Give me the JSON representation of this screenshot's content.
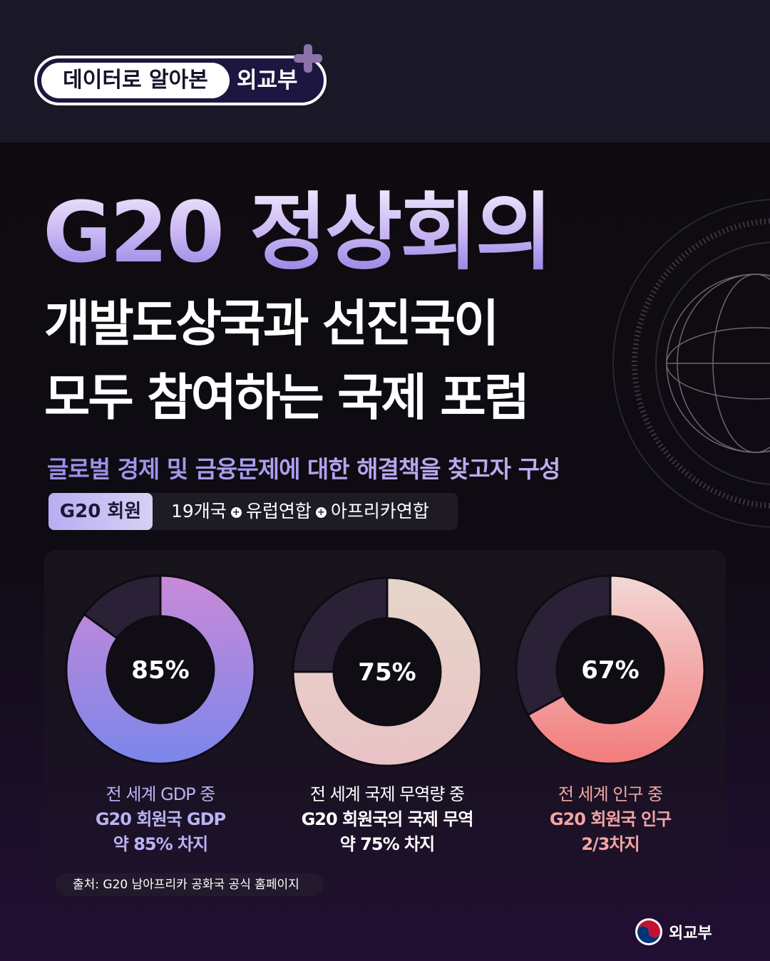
{
  "header": {
    "series_label": "데이터로 알아본",
    "org": "외교부"
  },
  "title": "G20 정상회의",
  "subtitle_lines": [
    "개발도상국과 선진국이",
    "모두 참여하는 국제 포럼"
  ],
  "tagline": "글로벌 경제 및 금융문제에 대한 해결책을 찾고자 구성",
  "members": {
    "label": "G20 회원",
    "items": [
      "19개국",
      "유럽연합",
      "아프리카연합"
    ],
    "separator": "+"
  },
  "chart_data": [
    {
      "type": "pie",
      "donut": true,
      "values": [
        85,
        15
      ],
      "label": "85%",
      "caption": [
        "전 세계 GDP 중",
        "G20  회원국 GDP",
        "약 85% 차지"
      ],
      "colors": [
        "#c98ad8",
        "#7b86ea"
      ],
      "caption_color": "#b9b3f2"
    },
    {
      "type": "pie",
      "donut": true,
      "values": [
        75,
        25
      ],
      "label": "75%",
      "caption": [
        "전 세계 국제 무역량 중",
        "G20 회원국의 국제 무역",
        "약 75% 차지"
      ],
      "colors": [
        "#e6d6c9",
        "#e9c2c6"
      ],
      "caption_color": "#ffffff"
    },
    {
      "type": "pie",
      "donut": true,
      "values": [
        67,
        33
      ],
      "label": "67%",
      "caption": [
        "전 세계 인구 중",
        "G20 회원국 인구",
        "2/3차지"
      ],
      "colors": [
        "#f2d8d6",
        "#f37b7b"
      ],
      "caption_color": "#f2a4a4"
    }
  ],
  "remainder_color": "#2a2136",
  "source": "출처: G20  남아프리카 공화국 공식 홈페이지",
  "footer_logo": "외교부"
}
